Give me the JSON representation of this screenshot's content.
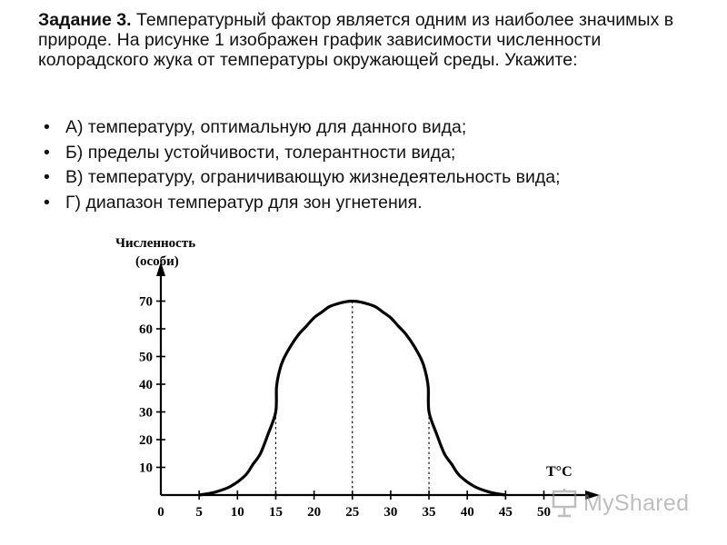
{
  "task": {
    "number": "Задание 3.",
    "text": "Температурный фактор является одним из наиболее значимых в природе. На рисунке 1 изображен график зависимости численности колорадского жука от температуры окружающей среды. Укажите:"
  },
  "bullets": [
    {
      "mark": "•",
      "text": "А) температуру, оптимальную для данного вида;"
    },
    {
      "mark": "•",
      "text": "Б) пределы устойчивости, толерантности вида;"
    },
    {
      "mark": "•",
      "text": "В) температуру, ограничивающую жизнедеятельность вида;"
    },
    {
      "mark": "•",
      "text": "Г) диапазон температур для зон угнетения."
    }
  ],
  "chart_data": {
    "type": "line",
    "ylabel_line1": "Численность",
    "ylabel_line2": "(особи)",
    "xlabel": "T°C",
    "xlim": [
      0,
      55
    ],
    "ylim": [
      0,
      70
    ],
    "x_ticks": [
      0,
      5,
      10,
      15,
      20,
      25,
      30,
      35,
      40,
      45,
      50
    ],
    "x_tick_labels": [
      "0",
      "5",
      "10",
      "15",
      "20",
      "25",
      "30",
      "35",
      "40",
      "45",
      "50"
    ],
    "y_ticks": [
      10,
      20,
      30,
      40,
      50,
      60,
      70
    ],
    "y_tick_labels": [
      "10",
      "20",
      "30",
      "40",
      "50",
      "60",
      "70"
    ],
    "grid": false,
    "guides_x": [
      15,
      25,
      35
    ],
    "x": [
      5,
      7,
      9,
      11,
      12,
      13,
      14,
      15,
      15.1,
      15.5,
      16,
      17,
      18,
      19,
      20,
      21,
      22,
      23,
      24,
      25,
      26,
      27,
      28,
      29,
      30,
      31,
      32,
      33,
      34,
      34.5,
      34.9,
      35,
      36,
      37,
      38,
      39,
      41,
      43,
      45
    ],
    "y": [
      0,
      1,
      3,
      7,
      11,
      15,
      22,
      30,
      39,
      45,
      49,
      54,
      58,
      61,
      64,
      66,
      68,
      69,
      69.7,
      70,
      69.7,
      69,
      68,
      66,
      64,
      61,
      58,
      54,
      49,
      45,
      39,
      30,
      22,
      15,
      11,
      7,
      3,
      1,
      0
    ]
  },
  "watermark": {
    "text": "MyShared",
    "icon": "presentation-board-icon"
  }
}
